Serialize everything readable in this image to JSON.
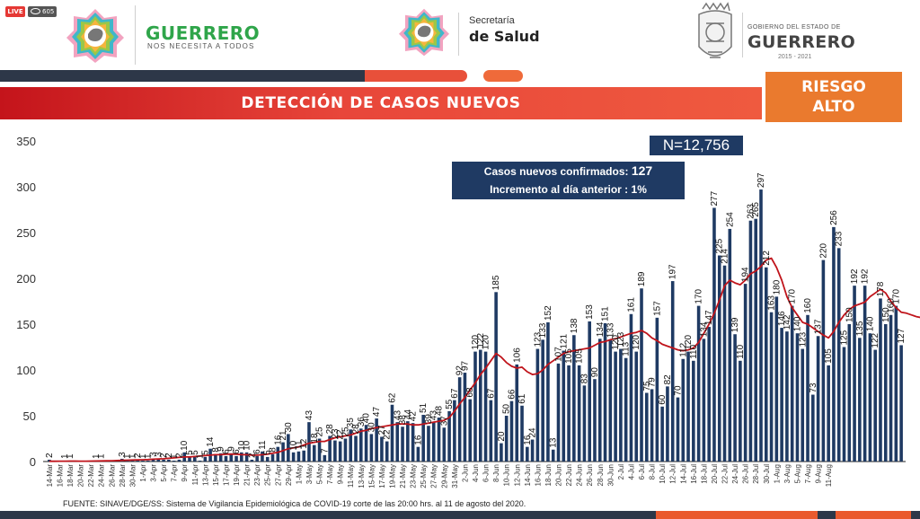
{
  "stream": {
    "live_badge": "LIVE",
    "viewer_count": "605"
  },
  "header": {
    "brand_title": "GUERRERO",
    "brand_slogan": "NOS NECESITA A TODOS",
    "ministry_line1": "Secretaría",
    "ministry_line2": "de Salud",
    "gov_line1": "GOBIERNO DEL ESTADO DE",
    "gov_line2": "GUERRERO",
    "gov_years": "2015 - 2021"
  },
  "banner": {
    "title": "DETECCIÓN DE CASOS NUEVOS",
    "risk_line1": "RIESGO",
    "risk_line2": "ALTO"
  },
  "summary": {
    "total": "N=12,756",
    "new_cases_label": "Casos nuevos confirmados:",
    "new_cases_value": "127",
    "increase_label": "Incremento al día anterior :",
    "increase_value": "1%"
  },
  "footer": {
    "source": "FUENTE: SINAVE/DGE/SS: Sistema de Vigilancia Epidemiológica de COVID-19 corte de las 20:00 hrs. al 11 de agosto del 2020."
  },
  "colors": {
    "bar": "#1f3a63",
    "moving_average": "#c0141b",
    "accent_orange": "#ea7a2e",
    "title_red": "#d42a2a"
  },
  "chart_data": {
    "type": "bar",
    "title": "DETECCIÓN DE CASOS NUEVOS",
    "start_date": "2020-03-14",
    "x_tick_labels": [
      "14-Mar",
      "16-Mar",
      "18-Mar",
      "20-Mar",
      "22-Mar",
      "24-Mar",
      "26-Mar",
      "28-Mar",
      "30-Mar",
      "1-Apr",
      "3-Apr",
      "5-Apr",
      "7-Apr",
      "9-Apr",
      "11-Apr",
      "13-Apr",
      "15-Apr",
      "17-Apr",
      "19-Apr",
      "21-Apr",
      "23-Apr",
      "25-Apr",
      "27-Apr",
      "29-Apr",
      "1-May",
      "3-May",
      "5-May",
      "7-May",
      "9-May",
      "11-May",
      "13-May",
      "15-May",
      "17-May",
      "19-May",
      "21-May",
      "23-May",
      "25-May",
      "27-May",
      "29-May",
      "31-May",
      "2-Jun",
      "4-Jun",
      "6-Jun",
      "8-Jun",
      "10-Jun",
      "12-Jun",
      "14-Jun",
      "16-Jun",
      "18-Jun",
      "20-Jun",
      "22-Jun",
      "24-Jun",
      "26-Jun",
      "28-Jun",
      "30-Jun",
      "2-Jul",
      "4-Jul",
      "6-Jul",
      "8-Jul",
      "10-Jul",
      "12-Jul",
      "14-Jul",
      "16-Jul",
      "18-Jul",
      "20-Jul",
      "22-Jul",
      "24-Jul",
      "26-Jul",
      "28-Jul",
      "30-Jul",
      "1-Aug",
      "3-Aug",
      "5-Aug",
      "7-Aug",
      "9-Aug",
      "11-Aug"
    ],
    "ylim": [
      0,
      350
    ],
    "y_ticks": [
      0,
      50,
      100,
      150,
      200,
      250,
      300,
      350
    ],
    "grid": false,
    "series": [
      {
        "type": "bar",
        "values": [
          2,
          0,
          0,
          1,
          1,
          0,
          0,
          0,
          0,
          1,
          1,
          0,
          0,
          0,
          3,
          1,
          1,
          2,
          1,
          1,
          3,
          3,
          2,
          2,
          1,
          2,
          10,
          5,
          5,
          1,
          5,
          14,
          8,
          9,
          6,
          9,
          6,
          10,
          10,
          2,
          6,
          11,
          5,
          8,
          16,
          21,
          30,
          10,
          11,
          12,
          43,
          18,
          25,
          7,
          28,
          23,
          22,
          25,
          35,
          28,
          36,
          40,
          30,
          47,
          27,
          22,
          62,
          43,
          38,
          44,
          42,
          16,
          51,
          39,
          43,
          48,
          37,
          55,
          67,
          92,
          97,
          68,
          120,
          122,
          120,
          67,
          185,
          20,
          50,
          66,
          106,
          61,
          16,
          24,
          123,
          133,
          152,
          13,
          107,
          121,
          105,
          138,
          105,
          83,
          153,
          90,
          134,
          151,
          133,
          120,
          123,
          113,
          161,
          120,
          189,
          75,
          79,
          157,
          60,
          82,
          197,
          70,
          112,
          120,
          110,
          170,
          134,
          147,
          277,
          225,
          214,
          254,
          139,
          110,
          194,
          263,
          265,
          297,
          212,
          163,
          180,
          146,
          142,
          170,
          140,
          123,
          160,
          73,
          137,
          220,
          105,
          256,
          233,
          125,
          150,
          192,
          135,
          192,
          140,
          122,
          178,
          150,
          160,
          170,
          127
        ],
        "labels": [
          2,
          null,
          null,
          1,
          1,
          null,
          null,
          null,
          null,
          1,
          1,
          null,
          null,
          null,
          3,
          1,
          1,
          2,
          1,
          1,
          3,
          3,
          2,
          2,
          1,
          2,
          10,
          5,
          5,
          1,
          5,
          14,
          8,
          9,
          6,
          9,
          6,
          10,
          10,
          2,
          6,
          11,
          5,
          8,
          16,
          21,
          30,
          10,
          11,
          12,
          43,
          18,
          25,
          7,
          28,
          23,
          22,
          25,
          35,
          28,
          36,
          40,
          30,
          47,
          27,
          22,
          62,
          43,
          38,
          44,
          42,
          16,
          51,
          39,
          43,
          48,
          37,
          55,
          67,
          92,
          97,
          68,
          120,
          122,
          120,
          67,
          185,
          20,
          50,
          66,
          106,
          61,
          16,
          24,
          123,
          133,
          152,
          13,
          107,
          121,
          105,
          138,
          105,
          83,
          153,
          90,
          134,
          151,
          133,
          120,
          123,
          113,
          161,
          120,
          189,
          75,
          79,
          157,
          60,
          82,
          197,
          70,
          112,
          120,
          110,
          170,
          134,
          147,
          277,
          225,
          214,
          254,
          139,
          110,
          194,
          263,
          265,
          297,
          212,
          163,
          180,
          146,
          142,
          170,
          140,
          123,
          160,
          73,
          137,
          220,
          105,
          256,
          233,
          125,
          150,
          192,
          135,
          192,
          140,
          122,
          178,
          150,
          160,
          170,
          127
        ]
      },
      {
        "type": "line",
        "values": [
          0.3,
          0.3,
          0.4,
          0.4,
          0.5,
          0.5,
          0.4,
          0.4,
          0.5,
          0.6,
          0.7,
          0.8,
          0.9,
          1.1,
          1.3,
          1.5,
          1.7,
          1.9,
          2,
          2.2,
          2.5,
          2.8,
          3,
          3.5,
          4,
          4.5,
          5,
          5,
          5.5,
          6,
          6.5,
          7,
          7.5,
          7.5,
          8,
          8,
          8,
          7.5,
          7.5,
          7,
          7,
          7.5,
          8,
          9,
          10,
          12,
          14,
          15,
          16,
          18,
          20,
          21,
          22,
          22,
          24,
          26,
          27,
          28,
          29,
          31,
          33,
          34,
          36,
          37,
          38,
          39,
          40,
          41,
          41,
          41,
          40,
          40,
          41,
          42,
          43,
          44,
          45,
          48,
          55,
          63,
          70,
          78,
          86,
          95,
          102,
          110,
          118,
          114,
          108,
          104,
          102,
          103,
          98,
          95,
          96,
          100,
          106,
          110,
          114,
          118,
          120,
          121,
          122,
          123,
          124,
          127,
          130,
          131,
          133,
          134,
          136,
          138,
          140,
          141,
          143,
          140,
          135,
          132,
          128,
          126,
          124,
          122,
          121,
          122,
          124,
          130,
          140,
          150,
          162,
          176,
          192,
          198,
          195,
          193,
          198,
          205,
          208,
          213,
          220,
          222,
          212,
          198,
          180,
          168,
          160,
          152,
          150,
          146,
          142,
          138,
          135,
          142,
          152,
          160,
          166,
          170,
          172,
          174,
          180,
          184,
          188,
          184,
          175,
          168,
          163,
          162,
          160,
          158,
          157,
          155,
          150
        ]
      }
    ]
  }
}
